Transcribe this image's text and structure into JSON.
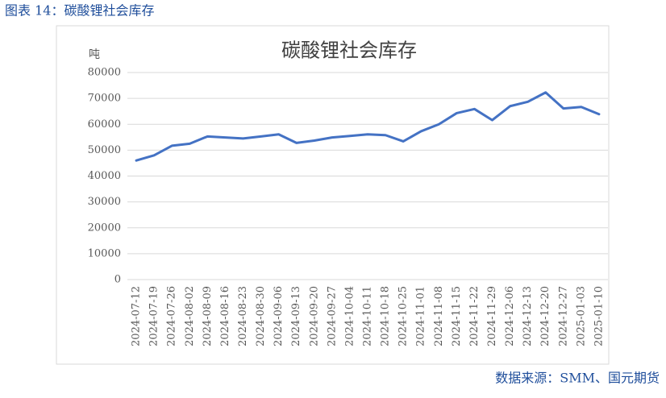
{
  "header": "图表 14：碳酸锂社会库存",
  "source": "数据来源：SMM、国元期货",
  "chart_data": {
    "type": "line",
    "title": "碳酸锂社会库存",
    "y_unit": "吨",
    "categories": [
      "2024-07-12",
      "2024-07-19",
      "2024-07-26",
      "2024-08-02",
      "2024-08-09",
      "2024-08-16",
      "2024-08-23",
      "2024-08-30",
      "2024-09-06",
      "2024-09-13",
      "2024-09-20",
      "2024-09-27",
      "2024-10-04",
      "2024-10-11",
      "2024-10-18",
      "2024-10-25",
      "2024-11-01",
      "2024-11-08",
      "2024-11-15",
      "2024-11-22",
      "2024-11-29",
      "2024-12-06",
      "2024-12-13",
      "2024-12-20",
      "2024-12-27",
      "2025-01-03",
      "2025-01-10"
    ],
    "values": [
      46000,
      48000,
      51700,
      52500,
      55300,
      54900,
      54500,
      55300,
      56100,
      52800,
      53700,
      54900,
      55500,
      56100,
      55800,
      53400,
      57300,
      60000,
      64300,
      65900,
      61600,
      67000,
      68700,
      72300,
      66100,
      66700,
      63900
    ],
    "color": "#4472c4",
    "ylim": [
      0,
      80000
    ],
    "yticks": [
      0,
      10000,
      20000,
      30000,
      40000,
      50000,
      60000,
      70000,
      80000
    ],
    "grid": true
  }
}
